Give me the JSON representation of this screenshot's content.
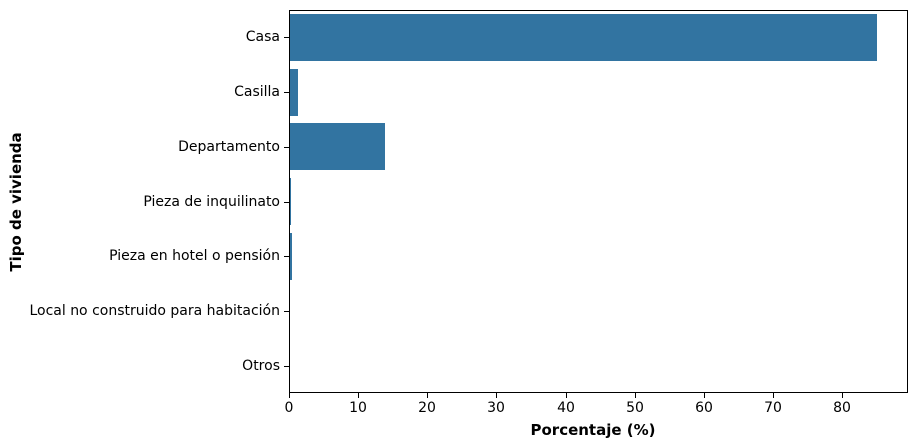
{
  "chart_data": {
    "type": "bar",
    "orientation": "horizontal",
    "title": "",
    "xlabel": "Porcentaje (%)",
    "ylabel": "Tipo de vivienda",
    "categories": [
      "Casa",
      "Casilla",
      "Departamento",
      "Pieza de inquilinato",
      "Pieza en hotel o pensión",
      "Local no construido para habitación",
      "Otros"
    ],
    "values": [
      84.9,
      1.2,
      13.7,
      0.2,
      0.3,
      0.05,
      0.02
    ],
    "xticks": [
      0,
      10,
      20,
      30,
      40,
      50,
      60,
      70,
      80
    ],
    "xlim": [
      0,
      89.25
    ],
    "bar_color": "#3274a1",
    "spine_color": "#000000",
    "text_color": "#000000",
    "grid": false,
    "legend": null
  }
}
